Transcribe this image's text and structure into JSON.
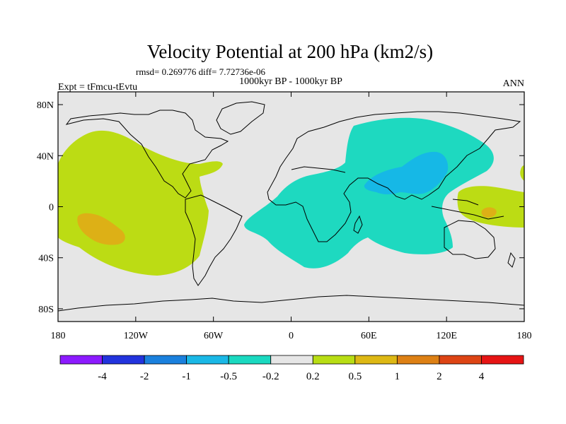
{
  "chart_data": {
    "type": "contour-map",
    "title": "Velocity Potential at 200 hPa (km2/s)",
    "stats_line": "rmsd= 0.269776  diff= 7.72736e-06",
    "subtitle": "1000kyr BP - 1000kyr BP",
    "left_label": "Expt = tFmcu-tEvtu",
    "right_label": "ANN",
    "x_axis": {
      "range": [
        -180,
        180
      ],
      "ticks": [
        -180,
        -120,
        -60,
        0,
        60,
        120,
        180
      ],
      "tick_labels": [
        "180",
        "120W",
        "60W",
        "0",
        "60E",
        "120E",
        "180"
      ]
    },
    "y_axis": {
      "range": [
        -90,
        90
      ],
      "ticks": [
        80,
        40,
        0,
        -40,
        -80
      ],
      "tick_labels": [
        "80N",
        "40N",
        "0",
        "40S",
        "80S"
      ]
    },
    "colorbar": {
      "levels": [
        -4,
        -2,
        -1,
        -0.5,
        -0.2,
        0.2,
        0.5,
        1,
        2,
        4
      ],
      "labels": [
        "-4",
        "-2",
        "-1",
        "-0.5",
        "-0.2",
        "0.2",
        "0.5",
        "1",
        "2",
        "4"
      ],
      "colors": [
        "#8c1aff",
        "#2233dd",
        "#1a80dd",
        "#1ab8e6",
        "#1ad9c0",
        "#e6e6e6",
        "#b8dd14",
        "#ddb814",
        "#dd8014",
        "#dd4414",
        "#e61414"
      ]
    },
    "regions": [
      {
        "name": "pacific-positive",
        "level_range": "0.2 to 0.5",
        "lon_range": [
          -180,
          -62
        ],
        "lat_range": [
          -50,
          60
        ]
      },
      {
        "name": "central-pacific-max",
        "level_range": "0.5 to 1",
        "lon_range": [
          -163,
          -139
        ],
        "lat_range": [
          -27,
          -4
        ]
      },
      {
        "name": "africa-asia-negative",
        "level_range": "-0.5 to -0.2",
        "lon_range": [
          -35,
          128
        ],
        "lat_range": [
          -48,
          72
        ]
      },
      {
        "name": "asia-minimum",
        "level_range": "-1 to -0.5",
        "lon_range": [
          60,
          118
        ],
        "lat_range": [
          10,
          45
        ]
      },
      {
        "name": "west-pacific-positive",
        "level_range": "0.2 to 0.5",
        "lon_range": [
          128,
          180
        ],
        "lat_range": [
          -15,
          18
        ]
      },
      {
        "name": "west-pacific-max",
        "level_range": "0.5 to 1",
        "lon_range": [
          145,
          158
        ],
        "lat_range": [
          -5,
          1
        ]
      }
    ]
  }
}
